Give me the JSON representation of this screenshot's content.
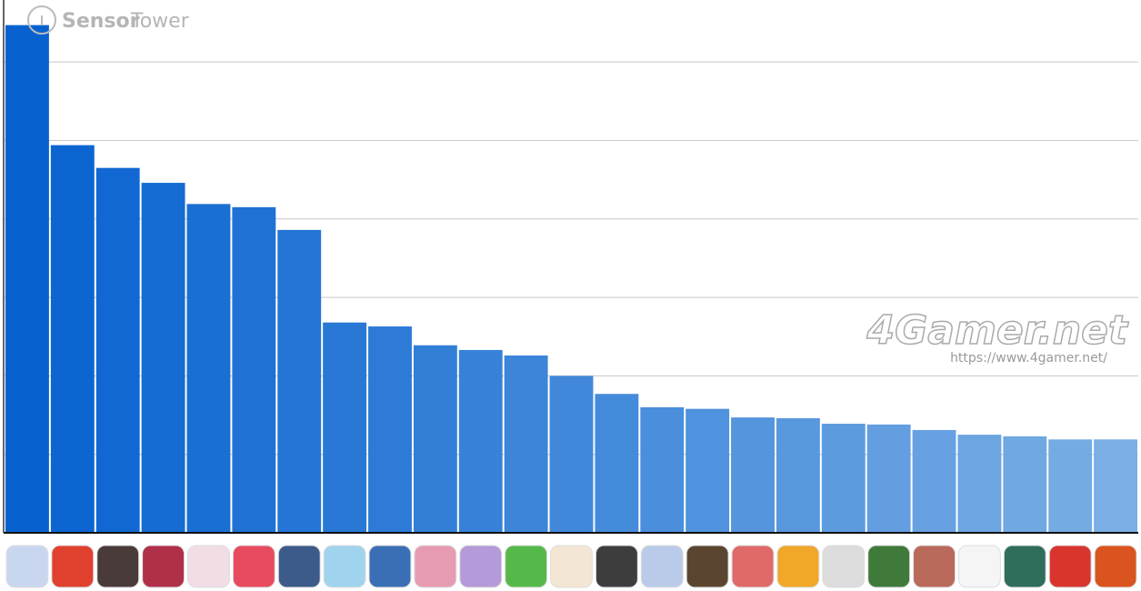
{
  "chart_data": {
    "type": "bar",
    "categories": [
      null,
      null,
      null,
      null,
      null,
      null,
      null,
      null,
      null,
      null,
      null,
      null,
      null,
      null,
      null,
      null,
      null,
      null,
      null,
      null,
      null,
      null,
      null,
      null,
      null
    ],
    "values": [
      6.47,
      4.94,
      4.65,
      4.46,
      4.19,
      4.15,
      3.86,
      2.68,
      2.63,
      2.39,
      2.33,
      2.26,
      2.0,
      1.77,
      1.6,
      1.58,
      1.47,
      1.46,
      1.39,
      1.38,
      1.31,
      1.25,
      1.23,
      1.19,
      1.19
    ],
    "color_gradient": [
      "#0762d0",
      "#7aaee4"
    ],
    "ylim": [
      0,
      6.79
    ],
    "yticks": [
      0,
      1,
      2,
      3,
      4,
      5,
      6
    ],
    "grid": true,
    "watermarks": {
      "logo_bold": "Sensor",
      "logo_light": "Tower",
      "site": "4Gamer.net",
      "url": "https://www.4gamer.net/"
    }
  }
}
